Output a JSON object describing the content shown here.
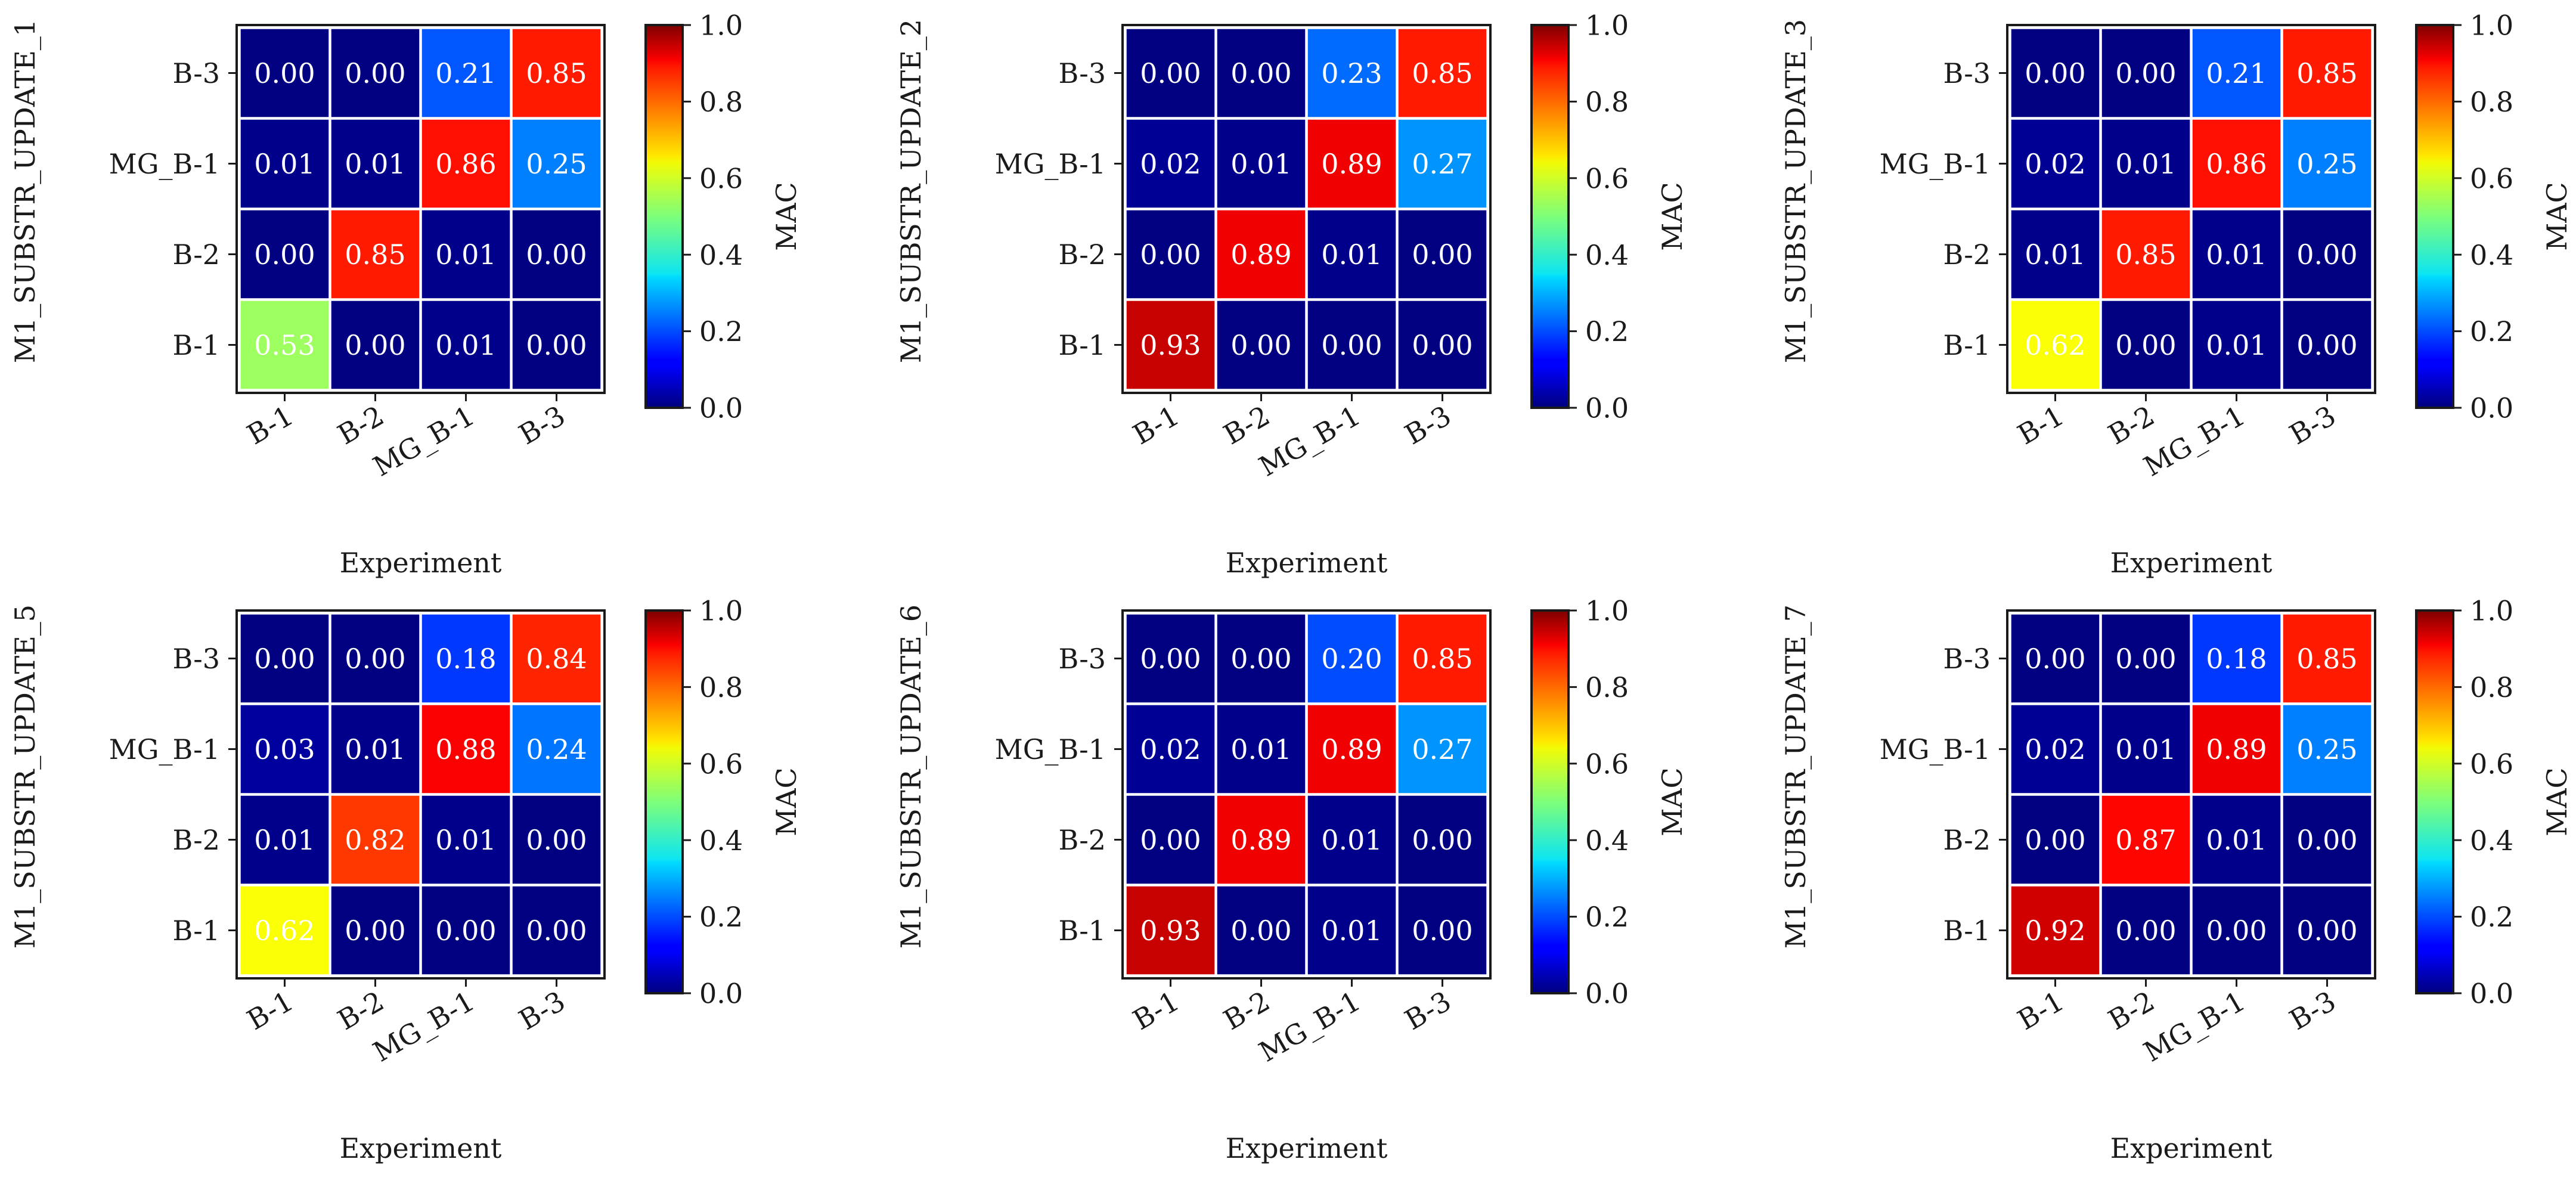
{
  "figure": {
    "colorbar_label": "MAC",
    "colorbar_ticks": [
      "0.0",
      "0.2",
      "0.4",
      "0.6",
      "0.8",
      "1.0"
    ]
  },
  "chart_data": [
    {
      "type": "heatmap",
      "title": "",
      "xlabel": "Experiment",
      "ylabel": "M1_SUBSTR_UPDATE_1",
      "x_categories": [
        "B-1",
        "B-2",
        "MG_B-1",
        "B-3"
      ],
      "y_categories": [
        "B-1",
        "B-2",
        "MG_B-1",
        "B-3"
      ],
      "rows": [
        [
          0.53,
          0.0,
          0.01,
          0.0
        ],
        [
          0.0,
          0.85,
          0.01,
          0.0
        ],
        [
          0.01,
          0.01,
          0.86,
          0.25
        ],
        [
          0.0,
          0.0,
          0.21,
          0.85
        ]
      ],
      "labels": [
        [
          "0.53",
          "0.00",
          "0.01",
          "0.00"
        ],
        [
          "0.00",
          "0.85",
          "0.01",
          "0.00"
        ],
        [
          "0.01",
          "0.01",
          "0.86",
          "0.25"
        ],
        [
          "0.00",
          "0.00",
          "0.21",
          "0.85"
        ]
      ],
      "vmin": 0.0,
      "vmax": 1.0,
      "colormap": "jet",
      "colorbar_label": "MAC"
    },
    {
      "type": "heatmap",
      "title": "",
      "xlabel": "Experiment",
      "ylabel": "M1_SUBSTR_UPDATE_2",
      "x_categories": [
        "B-1",
        "B-2",
        "MG_B-1",
        "B-3"
      ],
      "y_categories": [
        "B-1",
        "B-2",
        "MG_B-1",
        "B-3"
      ],
      "rows": [
        [
          0.93,
          0.0,
          0.0,
          0.0
        ],
        [
          0.0,
          0.89,
          0.01,
          0.0
        ],
        [
          0.02,
          0.01,
          0.89,
          0.27
        ],
        [
          0.0,
          0.0,
          0.23,
          0.85
        ]
      ],
      "labels": [
        [
          "0.93",
          "0.00",
          "0.00",
          "0.00"
        ],
        [
          "0.00",
          "0.89",
          "0.01",
          "0.00"
        ],
        [
          "0.02",
          "0.01",
          "0.89",
          "0.27"
        ],
        [
          "0.00",
          "0.00",
          "0.23",
          "0.85"
        ]
      ],
      "vmin": 0.0,
      "vmax": 1.0,
      "colormap": "jet",
      "colorbar_label": "MAC"
    },
    {
      "type": "heatmap",
      "title": "",
      "xlabel": "Experiment",
      "ylabel": "M1_SUBSTR_UPDATE_3",
      "x_categories": [
        "B-1",
        "B-2",
        "MG_B-1",
        "B-3"
      ],
      "y_categories": [
        "B-1",
        "B-2",
        "MG_B-1",
        "B-3"
      ],
      "rows": [
        [
          0.62,
          0.0,
          0.01,
          0.0
        ],
        [
          0.01,
          0.85,
          0.01,
          0.0
        ],
        [
          0.02,
          0.01,
          0.86,
          0.25
        ],
        [
          0.0,
          0.0,
          0.21,
          0.85
        ]
      ],
      "labels": [
        [
          "0.62",
          "0.00",
          "0.01",
          "0.00"
        ],
        [
          "0.01",
          "0.85",
          "0.01",
          "0.00"
        ],
        [
          "0.02",
          "0.01",
          "0.86",
          "0.25"
        ],
        [
          "0.00",
          "0.00",
          "0.21",
          "0.85"
        ]
      ],
      "vmin": 0.0,
      "vmax": 1.0,
      "colormap": "jet",
      "colorbar_label": "MAC"
    },
    {
      "type": "heatmap",
      "title": "",
      "xlabel": "Experiment",
      "ylabel": "M1_SUBSTR_UPDATE_5",
      "x_categories": [
        "B-1",
        "B-2",
        "MG_B-1",
        "B-3"
      ],
      "y_categories": [
        "B-1",
        "B-2",
        "MG_B-1",
        "B-3"
      ],
      "rows": [
        [
          0.62,
          0.0,
          0.0,
          0.0
        ],
        [
          0.01,
          0.82,
          0.01,
          0.0
        ],
        [
          0.03,
          0.01,
          0.88,
          0.24
        ],
        [
          0.0,
          0.0,
          0.18,
          0.84
        ]
      ],
      "labels": [
        [
          "0.62",
          "0.00",
          "0.00",
          "0.00"
        ],
        [
          "0.01",
          "0.82",
          "0.01",
          "0.00"
        ],
        [
          "0.03",
          "0.01",
          "0.88",
          "0.24"
        ],
        [
          "0.00",
          "0.00",
          "0.18",
          "0.84"
        ]
      ],
      "vmin": 0.0,
      "vmax": 1.0,
      "colormap": "jet",
      "colorbar_label": "MAC"
    },
    {
      "type": "heatmap",
      "title": "",
      "xlabel": "Experiment",
      "ylabel": "M1_SUBSTR_UPDATE_6",
      "x_categories": [
        "B-1",
        "B-2",
        "MG_B-1",
        "B-3"
      ],
      "y_categories": [
        "B-1",
        "B-2",
        "MG_B-1",
        "B-3"
      ],
      "rows": [
        [
          0.93,
          0.0,
          0.01,
          0.0
        ],
        [
          0.0,
          0.89,
          0.01,
          0.0
        ],
        [
          0.02,
          0.01,
          0.89,
          0.27
        ],
        [
          0.0,
          0.0,
          0.2,
          0.85
        ]
      ],
      "labels": [
        [
          "0.93",
          "0.00",
          "0.01",
          "0.00"
        ],
        [
          "0.00",
          "0.89",
          "0.01",
          "0.00"
        ],
        [
          "0.02",
          "0.01",
          "0.89",
          "0.27"
        ],
        [
          "0.00",
          "0.00",
          "0.20",
          "0.85"
        ]
      ],
      "vmin": 0.0,
      "vmax": 1.0,
      "colormap": "jet",
      "colorbar_label": "MAC"
    },
    {
      "type": "heatmap",
      "title": "",
      "xlabel": "Experiment",
      "ylabel": "M1_SUBSTR_UPDATE_7",
      "x_categories": [
        "B-1",
        "B-2",
        "MG_B-1",
        "B-3"
      ],
      "y_categories": [
        "B-1",
        "B-2",
        "MG_B-1",
        "B-3"
      ],
      "rows": [
        [
          0.92,
          0.0,
          0.0,
          0.0
        ],
        [
          0.0,
          0.87,
          0.01,
          0.0
        ],
        [
          0.02,
          0.01,
          0.89,
          0.25
        ],
        [
          0.0,
          0.0,
          0.18,
          0.85
        ]
      ],
      "labels": [
        [
          "0.92",
          "0.00",
          "0.00",
          "0.00"
        ],
        [
          "0.00",
          "0.87",
          "0.01",
          "0.00"
        ],
        [
          "0.02",
          "0.01",
          "0.89",
          "0.25"
        ],
        [
          "0.00",
          "0.00",
          "0.18",
          "0.85"
        ]
      ],
      "vmin": 0.0,
      "vmax": 1.0,
      "colormap": "jet",
      "colorbar_label": "MAC"
    }
  ]
}
